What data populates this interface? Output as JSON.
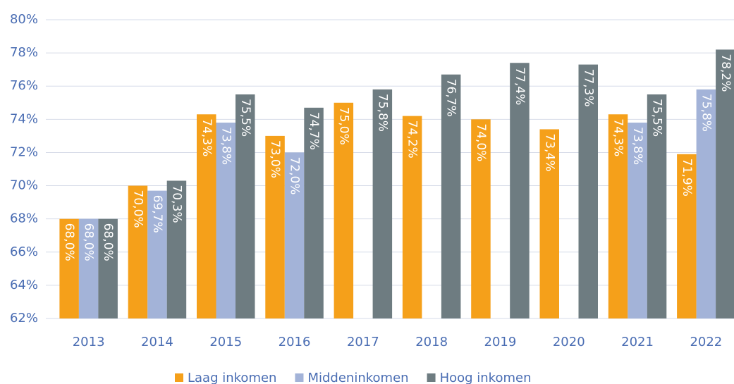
{
  "chart_data": {
    "type": "bar",
    "categories": [
      "2013",
      "2014",
      "2015",
      "2016",
      "2017",
      "2018",
      "2019",
      "2020",
      "2021",
      "2022"
    ],
    "series": [
      {
        "name": "Laag inkomen",
        "color": "#f5a01a",
        "values": [
          68.0,
          70.0,
          74.3,
          73.0,
          75.0,
          74.2,
          74.0,
          73.4,
          74.3,
          71.9
        ],
        "value_labels": [
          "68,0%",
          "70,0%",
          "74,3%",
          "73,0%",
          "75,0%",
          "74,2%",
          "74,0%",
          "73,4%",
          "74,3%",
          "71,9%"
        ]
      },
      {
        "name": "Middeninkomen",
        "color": "#a3b3d8",
        "values": [
          68.0,
          69.7,
          73.8,
          72.0,
          null,
          null,
          null,
          null,
          73.8,
          75.8
        ],
        "value_labels": [
          "68,0%",
          "69,7%",
          "73,8%",
          "72,0%",
          null,
          null,
          null,
          null,
          "73,8%",
          "75,8%"
        ]
      },
      {
        "name": "Hoog inkomen",
        "color": "#6e7c81",
        "values": [
          68.0,
          70.3,
          75.5,
          74.7,
          75.8,
          76.7,
          77.4,
          77.3,
          75.5,
          78.2
        ],
        "value_labels": [
          "68,0%",
          "70,3%",
          "75,5%",
          "74,7%",
          "75,8%",
          "76,7%",
          "77,4%",
          "77,3%",
          "75,5%",
          "78,2%"
        ]
      }
    ],
    "ylim": [
      62,
      80
    ],
    "yticks": [
      {
        "value": 62,
        "label": "62%"
      },
      {
        "value": 64,
        "label": "64%"
      },
      {
        "value": 66,
        "label": "66%"
      },
      {
        "value": 68,
        "label": "68%"
      },
      {
        "value": 70,
        "label": "70%"
      },
      {
        "value": 72,
        "label": "72%"
      },
      {
        "value": 74,
        "label": "74%"
      },
      {
        "value": 76,
        "label": "76%"
      },
      {
        "value": 78,
        "label": "78%"
      },
      {
        "value": 80,
        "label": "80%"
      }
    ],
    "grid": true,
    "legend": "bottom"
  }
}
